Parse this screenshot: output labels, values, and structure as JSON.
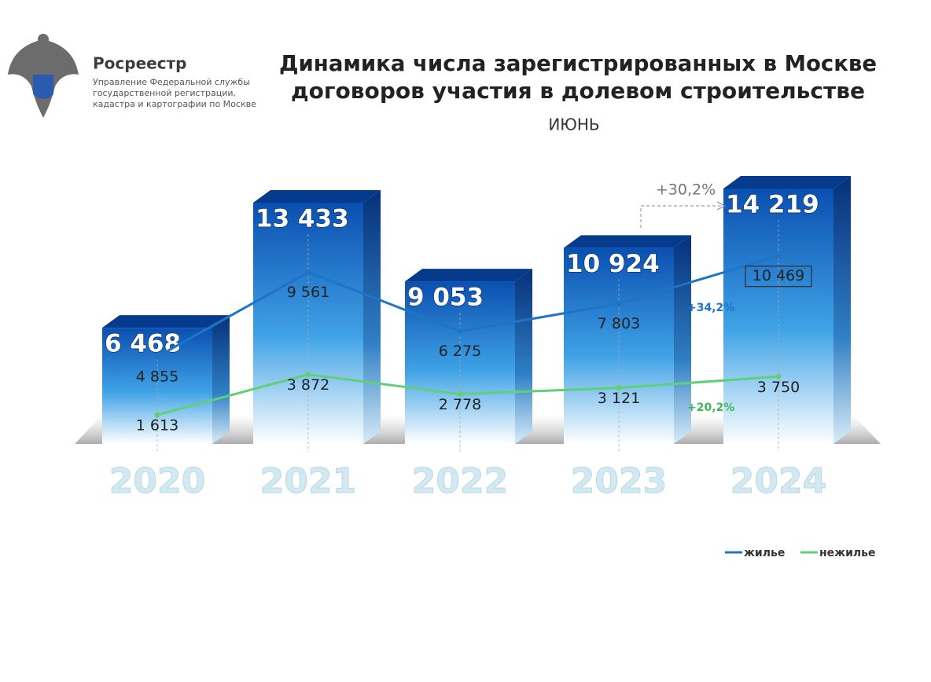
{
  "header": {
    "org": "Росреестр",
    "org_lines": [
      "Управление Федеральной службы",
      "государственной регистрации,",
      "кадастра и картографии по Москве"
    ]
  },
  "chart_data": {
    "type": "bar",
    "title": [
      "Динамика числа зарегистрированных в Москве",
      "договоров участия в долевом строительстве"
    ],
    "subtitle": "ИЮНЬ",
    "categories": [
      "2020",
      "2021",
      "2022",
      "2023",
      "2024"
    ],
    "values": [
      6468,
      13433,
      9053,
      10924,
      14219
    ],
    "value_labels": [
      "6 468",
      "13 433",
      "9 053",
      "10 924",
      "14 219"
    ],
    "color": "#0a4fb0",
    "series": [
      {
        "name": "жилье",
        "color": "#1f74c8",
        "values": [
          4855,
          9561,
          6275,
          7803,
          10469
        ],
        "value_labels": [
          "4 855",
          "9 561",
          "6 275",
          "7 803",
          "10 469"
        ]
      },
      {
        "name": "нежилье",
        "color": "#5fd07a",
        "values": [
          1613,
          3872,
          2778,
          3121,
          3750
        ],
        "value_labels": [
          "1 613",
          "3 872",
          "2 778",
          "3 121",
          "3 750"
        ]
      }
    ],
    "annotations": [
      {
        "text": "+30,2%",
        "color": "#777777"
      },
      {
        "text": "+34,2%",
        "color": "#1f74c8"
      },
      {
        "text": "+20,2%",
        "color": "#3cb85a"
      }
    ]
  }
}
